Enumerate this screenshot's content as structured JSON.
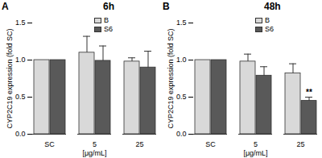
{
  "chart_data": [
    {
      "type": "bar",
      "panel": "A",
      "title": "6h",
      "categories": [
        "SC",
        "5",
        "25"
      ],
      "series": [
        {
          "name": "B",
          "color": "#d9d9d9",
          "values": [
            1.0,
            1.1,
            0.98
          ],
          "errors": [
            0,
            0.22,
            0.05
          ]
        },
        {
          "name": "S6",
          "color": "#595959",
          "values": [
            1.0,
            0.99,
            0.9
          ],
          "errors": [
            0,
            0.2,
            0.22
          ]
        }
      ],
      "x_label": "[μg/mL]",
      "y_label": "CYP2C19 expression (fold SC)",
      "ylim": [
        0,
        1.5
      ],
      "yticks": [
        {
          "value": 0,
          "label": "0.0"
        },
        {
          "value": 0.5,
          "label": "0.5"
        },
        {
          "value": 1,
          "label": "1.0"
        },
        {
          "value": 1.5,
          "label": "1.5"
        }
      ],
      "legend": "top-right"
    },
    {
      "type": "bar",
      "panel": "B",
      "title": "48h",
      "categories": [
        "SC",
        "5",
        "25"
      ],
      "series": [
        {
          "name": "B",
          "color": "#d9d9d9",
          "values": [
            1.0,
            0.98,
            0.82
          ],
          "errors": [
            0,
            0.1,
            0.13
          ]
        },
        {
          "name": "S6",
          "color": "#595959",
          "values": [
            1.0,
            0.79,
            0.45
          ],
          "errors": [
            0,
            0.12,
            0.05
          ]
        }
      ],
      "annotations": [
        {
          "category": "25",
          "series": "S6",
          "text": "**"
        }
      ],
      "x_label": "[μg/mL]",
      "y_label": "CYP2C19 expression (fold SC)",
      "ylim": [
        0,
        1.5
      ],
      "yticks": [
        {
          "value": 0,
          "label": "0.0"
        },
        {
          "value": 0.5,
          "label": "0.5"
        },
        {
          "value": 1,
          "label": "1.0"
        },
        {
          "value": 1.5,
          "label": "1.5"
        }
      ],
      "legend": "top-right"
    }
  ]
}
